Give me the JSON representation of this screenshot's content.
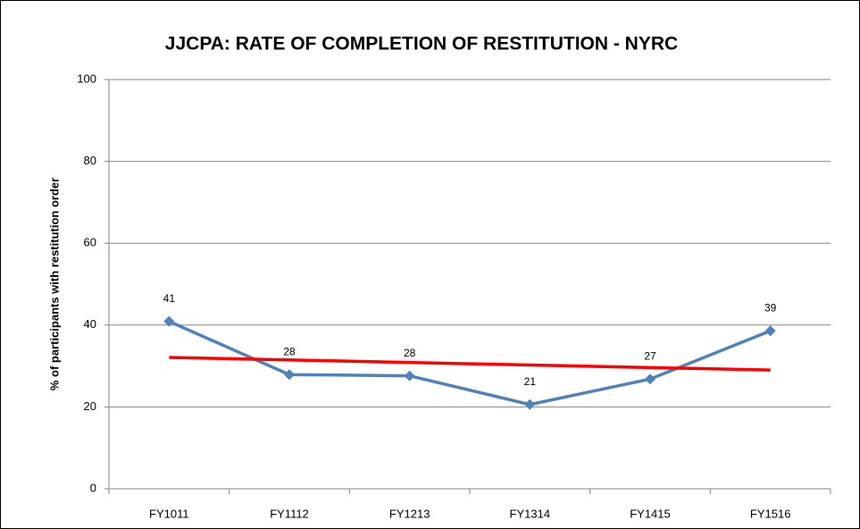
{
  "chart_data": {
    "type": "line",
    "title": "JJCPA: RATE OF COMPLETION OF RESTITUTION - NYRC",
    "y_label": "% of participants with restitution order",
    "categories": [
      "FY1011",
      "FY1112",
      "FY1213",
      "FY1314",
      "FY1415",
      "FY1516"
    ],
    "series": [
      {
        "color": "#4f81bd",
        "values": [
          40.9,
          27.9,
          27.6,
          20.6,
          26.8,
          38.6
        ],
        "value_labels": [
          "41",
          "28",
          "28",
          "21",
          "27",
          "39"
        ]
      }
    ],
    "trendline": {
      "color": "#ff0000",
      "values": [
        32.1,
        29.0
      ]
    },
    "ylim": [
      0,
      100
    ],
    "yticks": [
      0,
      20,
      40,
      60,
      80,
      100
    ],
    "grid": true
  }
}
